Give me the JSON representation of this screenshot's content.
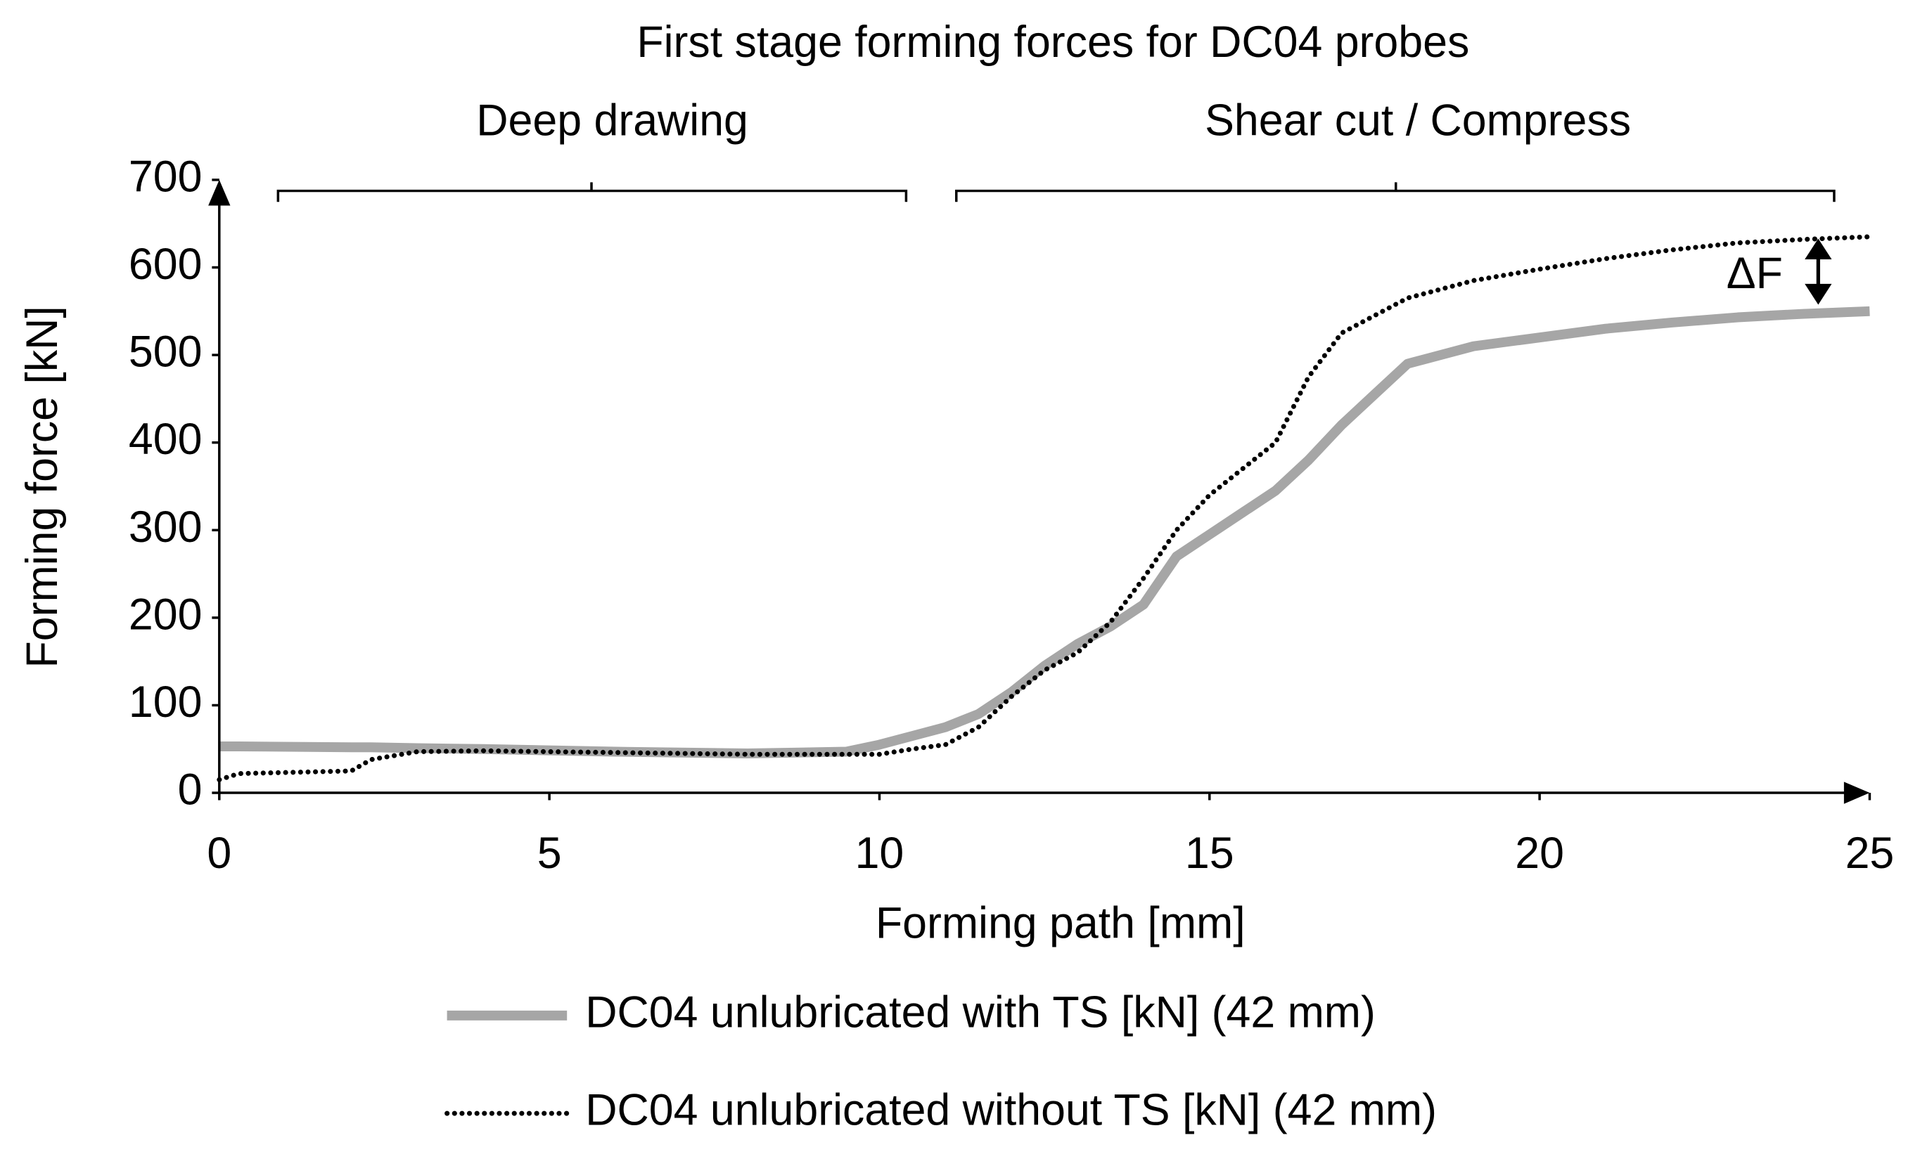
{
  "chart_data": {
    "type": "line",
    "title": "First stage forming forces for DC04 probes",
    "annotations": [
      "Deep drawing",
      "Shear cut / Compress",
      "ΔF"
    ],
    "xlabel": "Forming path [mm]",
    "ylabel": "Forming force [kN]",
    "x": [
      0,
      0.3,
      2,
      2.3,
      3,
      4,
      6,
      8,
      9.5,
      10,
      10.5,
      11,
      11.5,
      12,
      12.5,
      13,
      13.5,
      14,
      14.5,
      15,
      15.5,
      16,
      16.5,
      17,
      17.5,
      18,
      19,
      20,
      21,
      22,
      23,
      24,
      25
    ],
    "series": [
      {
        "name": "DC04 unlubricated with TS [kN] (42 mm)",
        "color": "#a6a6a6",
        "style": "solid",
        "values": [
          53,
          53,
          52,
          52,
          51,
          50,
          47,
          45,
          47,
          55,
          65,
          75,
          90,
          115,
          145,
          170,
          190,
          215,
          270,
          295,
          320,
          345,
          380,
          420,
          455,
          490,
          510,
          520,
          530,
          537,
          543,
          547,
          550
        ]
      },
      {
        "name": "DC04 unlubricated without TS [kN] (42 mm)",
        "color": "#000000",
        "style": "dotted",
        "values": [
          15,
          22,
          25,
          38,
          47,
          48,
          46,
          44,
          44,
          44,
          50,
          55,
          75,
          110,
          140,
          160,
          195,
          245,
          300,
          340,
          370,
          400,
          475,
          525,
          545,
          565,
          585,
          598,
          610,
          620,
          628,
          632,
          635
        ]
      }
    ],
    "xlim": [
      0,
      25
    ],
    "xticks": [
      0,
      5,
      10,
      15,
      20,
      25
    ],
    "ylim": [
      0,
      700
    ],
    "yticks": [
      0,
      100,
      200,
      300,
      400,
      500,
      600,
      700
    ],
    "grid": false,
    "legend": "bottom"
  }
}
